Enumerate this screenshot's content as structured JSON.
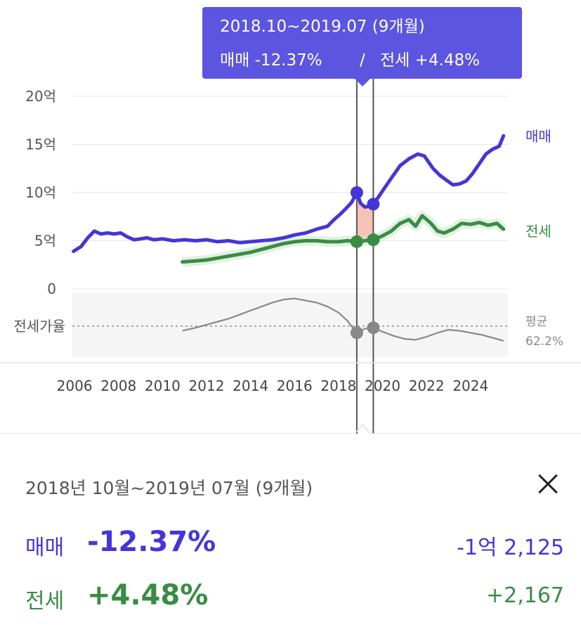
{
  "chart_data": {
    "type": "line",
    "y_axis": {
      "ticks": [
        "20억",
        "15억",
        "10억",
        "5억",
        "0"
      ],
      "ylim": [
        0,
        20
      ],
      "unit": "억"
    },
    "x_axis": {
      "ticks": [
        "2006",
        "2008",
        "2010",
        "2012",
        "2014",
        "2016",
        "2018",
        "2020",
        "2022",
        "2024"
      ],
      "xlim": [
        2005.9,
        2025.7
      ]
    },
    "series": [
      {
        "name": "매매",
        "color": "#4436d6",
        "x": [
          2005.95,
          2006.3,
          2006.6,
          2006.9,
          2007.2,
          2007.5,
          2007.8,
          2008.1,
          2008.4,
          2008.7,
          2009.0,
          2009.3,
          2009.6,
          2010.0,
          2010.5,
          2011.0,
          2011.5,
          2012.0,
          2012.5,
          2013.0,
          2013.5,
          2014.0,
          2014.5,
          2015.0,
          2015.5,
          2016.0,
          2016.5,
          2017.0,
          2017.5,
          2017.8,
          2018.1,
          2018.4,
          2018.6,
          2018.83,
          2019.0,
          2019.2,
          2019.4,
          2019.58,
          2019.8,
          2020.1,
          2020.4,
          2020.8,
          2021.2,
          2021.6,
          2021.9,
          2022.3,
          2022.6,
          2022.9,
          2023.2,
          2023.5,
          2023.8,
          2024.1,
          2024.4,
          2024.7,
          2025.0,
          2025.3,
          2025.5
        ],
        "values": [
          3.9,
          4.4,
          5.3,
          6.0,
          5.7,
          5.8,
          5.7,
          5.8,
          5.4,
          5.1,
          5.2,
          5.3,
          5.1,
          5.2,
          5.0,
          5.1,
          5.0,
          5.1,
          4.9,
          5.0,
          4.8,
          4.9,
          5.0,
          5.1,
          5.3,
          5.6,
          5.8,
          6.2,
          6.5,
          7.2,
          7.8,
          8.5,
          9.0,
          10.0,
          8.9,
          8.5,
          8.6,
          8.8,
          9.5,
          10.5,
          11.5,
          12.8,
          13.5,
          14.0,
          13.8,
          12.5,
          11.8,
          11.3,
          10.8,
          10.9,
          11.2,
          12.0,
          13.0,
          14.0,
          14.5,
          14.8,
          15.9
        ]
      },
      {
        "name": "전세",
        "color": "#3a8c45",
        "x": [
          2010.9,
          2011.5,
          2012.0,
          2012.5,
          2013.0,
          2013.5,
          2014.0,
          2014.5,
          2015.0,
          2015.5,
          2016.0,
          2016.5,
          2017.0,
          2017.5,
          2018.0,
          2018.4,
          2018.83,
          2019.2,
          2019.58,
          2020.0,
          2020.4,
          2020.8,
          2021.2,
          2021.5,
          2021.8,
          2022.2,
          2022.5,
          2022.8,
          2023.2,
          2023.6,
          2024.0,
          2024.4,
          2024.8,
          2025.2,
          2025.5
        ],
        "values": [
          2.8,
          2.9,
          3.0,
          3.2,
          3.4,
          3.6,
          3.8,
          4.1,
          4.4,
          4.7,
          4.9,
          5.0,
          5.0,
          4.9,
          4.9,
          5.0,
          4.9,
          5.0,
          5.1,
          5.5,
          6.0,
          6.8,
          7.2,
          6.5,
          7.6,
          6.8,
          6.0,
          5.8,
          6.2,
          6.8,
          6.7,
          6.9,
          6.6,
          6.8,
          6.2
        ]
      },
      {
        "name": "전세가율",
        "color": "#888888",
        "x": [
          2010.9,
          2011.5,
          2012.0,
          2012.5,
          2013.0,
          2013.5,
          2014.0,
          2014.5,
          2015.0,
          2015.5,
          2016.0,
          2016.5,
          2017.0,
          2017.5,
          2018.0,
          2018.4,
          2018.83,
          2019.2,
          2019.58,
          2020.0,
          2020.5,
          2021.0,
          2021.5,
          2022.0,
          2022.5,
          2023.0,
          2023.5,
          2024.0,
          2024.5,
          2025.0,
          2025.5
        ],
        "values": [
          62.0,
          63.5,
          65.0,
          66.5,
          68.0,
          70.0,
          72.0,
          74.0,
          76.0,
          77.5,
          78.0,
          77.0,
          76.0,
          74.0,
          71.0,
          67.0,
          61.0,
          63.0,
          63.5,
          61.5,
          59.5,
          58.0,
          57.5,
          59.0,
          61.0,
          62.5,
          62.0,
          61.0,
          60.0,
          58.5,
          57.0
        ]
      }
    ],
    "ratio_reference": {
      "label": "평균",
      "value": 62.2,
      "display": "62.2%"
    },
    "ratio_label": "전세가율",
    "highlight": {
      "start": 2018.83,
      "end": 2019.58
    }
  },
  "tooltip": {
    "period": "2018.10~2019.07 (9개월)",
    "sale_part": "매매 -12.37%",
    "separator": "/",
    "jeonse_part": "전세 +4.48%"
  },
  "detail": {
    "period": "2018년 10월~2019년 07월 (9개월)",
    "sale": {
      "label": "매매",
      "pct": "-12.37%",
      "amount": "-1억 2,125"
    },
    "jeonse": {
      "label": "전세",
      "pct": "+4.48%",
      "amount": "+2,167"
    }
  },
  "colors": {
    "sale": "#4436d6",
    "jeonse": "#3a8c45",
    "tooltip_bg": "#5b55e0",
    "highlight_fill": "#f4b7a6"
  }
}
